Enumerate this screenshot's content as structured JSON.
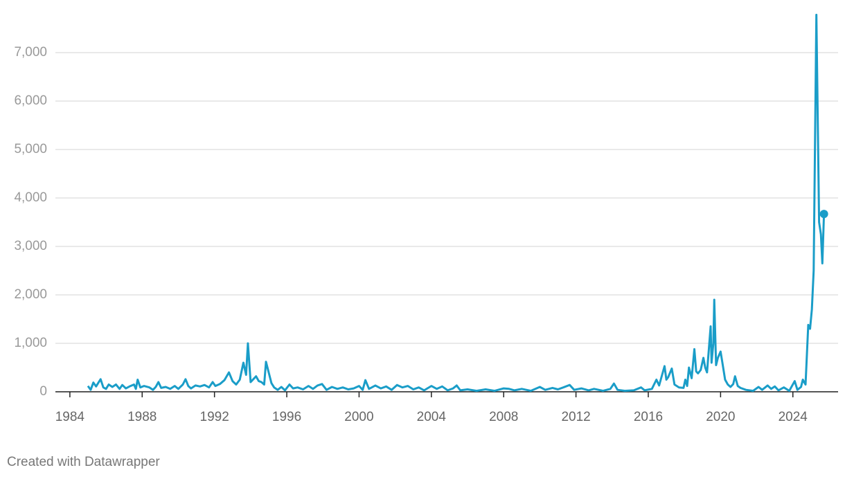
{
  "chart_data": {
    "type": "line",
    "footer": "Created with Datawrapper",
    "color": "#1a9dc8",
    "grid": true,
    "xlim": [
      1983.2,
      2026.5
    ],
    "xticks": [
      1984,
      1988,
      1992,
      1996,
      2000,
      2004,
      2008,
      2012,
      2016,
      2020,
      2024
    ],
    "ylim": [
      0,
      7800
    ],
    "yticks": [
      0,
      {
        "value": 1000,
        "label": "1,000"
      },
      {
        "value": 2000,
        "label": "2,000"
      },
      {
        "value": 3000,
        "label": "3,000"
      },
      {
        "value": 4000,
        "label": "4,000"
      },
      {
        "value": 5000,
        "label": "5,000"
      },
      {
        "value": 6000,
        "label": "6,000"
      },
      {
        "value": 7000,
        "label": "7,000"
      }
    ],
    "end_marker": true,
    "x": [
      1985.0,
      1985.15,
      1985.3,
      1985.45,
      1985.55,
      1985.7,
      1985.85,
      1986.0,
      1986.15,
      1986.35,
      1986.55,
      1986.75,
      1986.9,
      1987.1,
      1987.3,
      1987.55,
      1987.65,
      1987.75,
      1987.9,
      1988.1,
      1988.4,
      1988.6,
      1988.75,
      1988.9,
      1989.05,
      1989.3,
      1989.55,
      1989.8,
      1990.0,
      1990.25,
      1990.4,
      1990.55,
      1990.7,
      1990.95,
      1991.2,
      1991.45,
      1991.7,
      1991.9,
      1992.05,
      1992.3,
      1992.55,
      1992.8,
      1993.0,
      1993.2,
      1993.4,
      1993.6,
      1993.75,
      1993.85,
      1994.0,
      1994.15,
      1994.3,
      1994.45,
      1994.6,
      1994.75,
      1994.85,
      1995.0,
      1995.15,
      1995.3,
      1995.5,
      1995.7,
      1995.9,
      1996.15,
      1996.35,
      1996.6,
      1996.9,
      1997.2,
      1997.45,
      1997.7,
      1997.95,
      1998.2,
      1998.5,
      1998.8,
      1999.1,
      1999.4,
      1999.7,
      2000.0,
      2000.2,
      2000.35,
      2000.55,
      2000.9,
      2001.2,
      2001.5,
      2001.8,
      2002.1,
      2002.4,
      2002.7,
      2003.0,
      2003.3,
      2003.6,
      2004.0,
      2004.3,
      2004.6,
      2004.9,
      2005.2,
      2005.4,
      2005.6,
      2006.0,
      2006.5,
      2007.0,
      2007.5,
      2008.0,
      2008.3,
      2008.6,
      2009.0,
      2009.5,
      2010.0,
      2010.3,
      2010.7,
      2011.0,
      2011.3,
      2011.65,
      2011.9,
      2012.3,
      2012.7,
      2013.0,
      2013.5,
      2013.9,
      2014.1,
      2014.3,
      2014.7,
      2015.2,
      2015.6,
      2015.8,
      2016.2,
      2016.45,
      2016.6,
      2016.9,
      2017.0,
      2017.1,
      2017.3,
      2017.45,
      2017.7,
      2017.95,
      2018.05,
      2018.15,
      2018.25,
      2018.4,
      2018.55,
      2018.65,
      2018.75,
      2018.9,
      2019.05,
      2019.15,
      2019.25,
      2019.45,
      2019.5,
      2019.6,
      2019.65,
      2019.75,
      2019.85,
      2020.0,
      2020.1,
      2020.25,
      2020.4,
      2020.55,
      2020.7,
      2020.8,
      2020.95,
      2021.1,
      2021.4,
      2021.8,
      2022.1,
      2022.3,
      2022.6,
      2022.8,
      2023.0,
      2023.2,
      2023.5,
      2023.8,
      2024.1,
      2024.25,
      2024.45,
      2024.55,
      2024.7,
      2024.85,
      2024.95,
      2025.05,
      2025.15,
      2025.3,
      2025.45,
      2025.55,
      2025.63,
      2025.72
    ],
    "values": [
      120,
      40,
      190,
      110,
      170,
      260,
      90,
      60,
      150,
      100,
      150,
      60,
      140,
      70,
      110,
      150,
      60,
      250,
      90,
      120,
      90,
      40,
      100,
      200,
      80,
      100,
      60,
      120,
      60,
      150,
      260,
      120,
      70,
      130,
      110,
      140,
      90,
      200,
      120,
      160,
      240,
      400,
      220,
      150,
      250,
      600,
      350,
      1000,
      200,
      260,
      320,
      220,
      200,
      150,
      620,
      400,
      180,
      90,
      40,
      100,
      30,
      150,
      70,
      90,
      50,
      120,
      60,
      130,
      160,
      40,
      100,
      60,
      90,
      50,
      70,
      120,
      40,
      240,
      60,
      130,
      70,
      110,
      40,
      140,
      90,
      120,
      50,
      90,
      30,
      120,
      60,
      110,
      30,
      70,
      130,
      30,
      50,
      20,
      50,
      20,
      70,
      60,
      30,
      60,
      20,
      100,
      40,
      80,
      50,
      90,
      140,
      40,
      70,
      30,
      60,
      20,
      60,
      170,
      40,
      20,
      30,
      90,
      30,
      60,
      250,
      130,
      530,
      250,
      300,
      480,
      150,
      90,
      80,
      250,
      120,
      500,
      280,
      880,
      420,
      380,
      450,
      700,
      500,
      400,
      1350,
      600,
      1000,
      1900,
      550,
      700,
      830,
      600,
      250,
      150,
      100,
      160,
      320,
      120,
      80,
      40,
      20,
      100,
      40,
      130,
      60,
      110,
      30,
      90,
      20,
      220,
      40,
      100,
      250,
      150,
      1380,
      1300,
      1700,
      2500,
      7780,
      3500,
      3250,
      2650,
      3670
    ]
  }
}
